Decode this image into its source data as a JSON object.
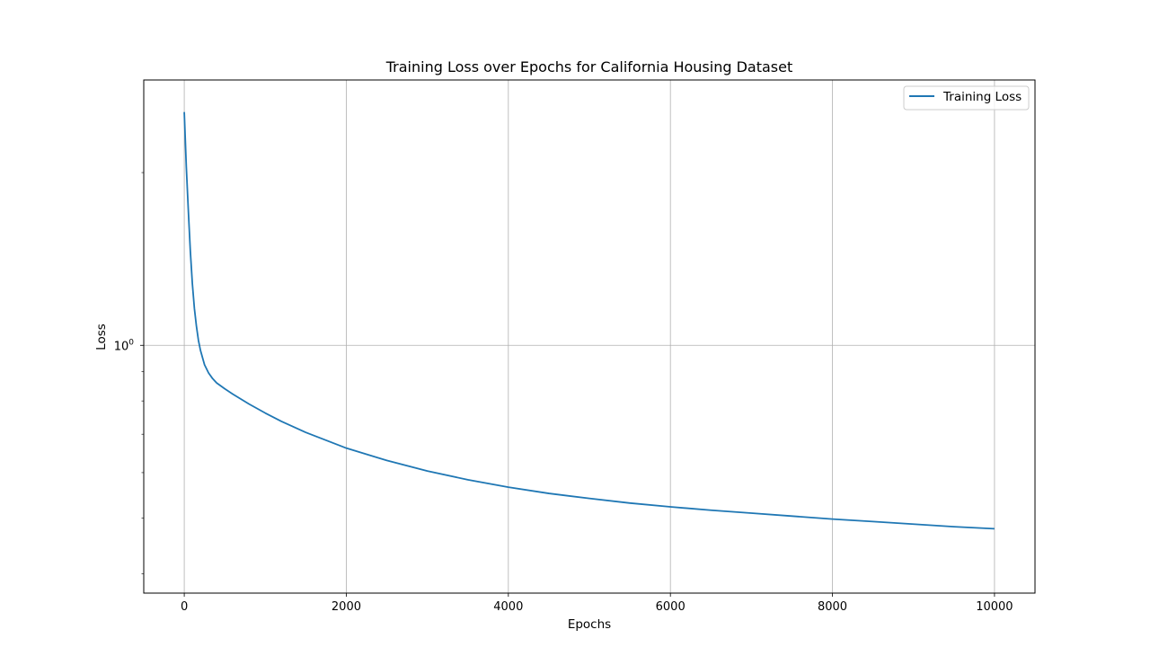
{
  "chart_data": {
    "type": "line",
    "title": "Training Loss over Epochs for California Housing Dataset",
    "xlabel": "Epochs",
    "ylabel": "Loss",
    "yscale": "log",
    "xlim": [
      -500,
      10500
    ],
    "ylim": [
      0.37,
      2.9
    ],
    "xticks": [
      0,
      2000,
      4000,
      6000,
      8000,
      10000
    ],
    "xtick_labels": [
      "0",
      "2000",
      "4000",
      "6000",
      "8000",
      "10000"
    ],
    "yticks": [
      1
    ],
    "ytick_label_base": "10",
    "ytick_label_exp": "0",
    "grid": true,
    "legend": {
      "location": "top-right",
      "entries": [
        "Training Loss"
      ]
    },
    "series": [
      {
        "name": "Training Loss",
        "color": "#1f77b4",
        "x": [
          0,
          25,
          50,
          75,
          100,
          125,
          150,
          175,
          200,
          250,
          300,
          350,
          400,
          500,
          600,
          800,
          1000,
          1200,
          1500,
          2000,
          2500,
          3000,
          3500,
          4000,
          4500,
          5000,
          5500,
          6000,
          6500,
          7000,
          7500,
          8000,
          8500,
          9000,
          9500,
          10000
        ],
        "y": [
          2.55,
          2.05,
          1.72,
          1.46,
          1.28,
          1.16,
          1.08,
          1.02,
          0.98,
          0.925,
          0.895,
          0.875,
          0.86,
          0.84,
          0.822,
          0.79,
          0.762,
          0.737,
          0.705,
          0.662,
          0.63,
          0.604,
          0.583,
          0.566,
          0.552,
          0.541,
          0.531,
          0.523,
          0.516,
          0.51,
          0.504,
          0.498,
          0.493,
          0.488,
          0.483,
          0.479
        ]
      }
    ]
  }
}
